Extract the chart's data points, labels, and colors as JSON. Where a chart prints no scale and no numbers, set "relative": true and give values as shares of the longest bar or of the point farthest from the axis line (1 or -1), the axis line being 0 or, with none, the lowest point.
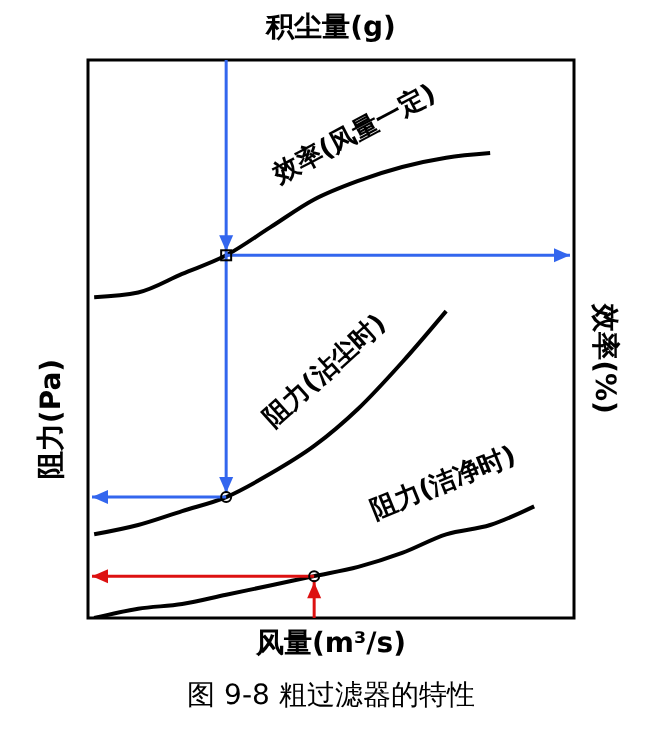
{
  "chart_data": {
    "type": "line",
    "title": "图 9-8 粗过滤器的特性",
    "x2label": "积尘量(g)",
    "xlabel": "风量(m³/s)",
    "ylabel": "阻力(Pa)",
    "y2label": "效率(%)",
    "relative": true,
    "marker": "none",
    "categories": [
      null,
      null,
      null,
      null,
      null,
      null,
      null,
      null,
      null,
      null,
      null
    ],
    "series": [
      {
        "name": "效率(风量一定)",
        "color": "#000000",
        "values": [
          0.69,
          0.7,
          0.74,
          0.78,
          0.84,
          0.9,
          0.94,
          0.97,
          0.99,
          1,
          null
        ]
      },
      {
        "name": "阻力(沾尘时)",
        "color": "#000000",
        "values": [
          0.18,
          0.2,
          0.23,
          0.26,
          0.31,
          0.37,
          0.45,
          0.55,
          0.66,
          null,
          null
        ]
      },
      {
        "name": "阻力(洁净时)",
        "color": "#000000",
        "values": [
          0,
          0.02,
          0.03,
          0.05,
          0.07,
          0.09,
          0.11,
          0.14,
          0.18,
          0.2,
          0.24
        ]
      }
    ]
  }
}
